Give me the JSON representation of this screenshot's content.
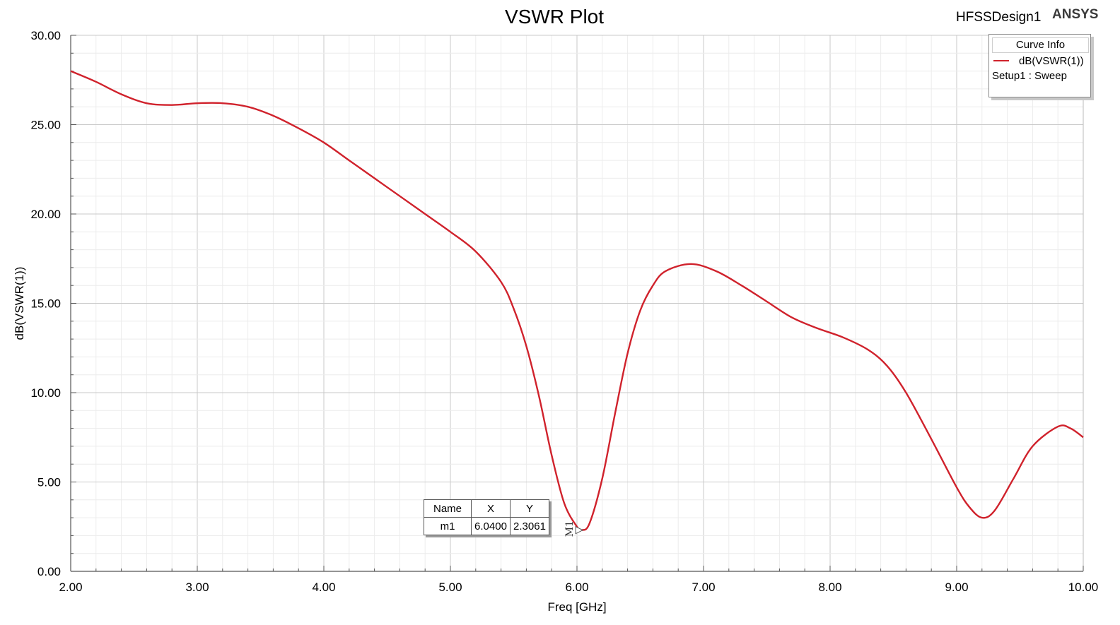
{
  "header": {
    "title": "VSWR Plot",
    "design_name": "HFSSDesign1",
    "brand": "ANSYS"
  },
  "legend": {
    "heading": "Curve Info",
    "series_name": "dB(VSWR(1))",
    "source": "Setup1 : Sweep",
    "color": "#d0222c"
  },
  "marker_table": {
    "headers": [
      "Name",
      "X",
      "Y"
    ],
    "rows": [
      [
        "m1",
        "6.0400",
        "2.3061"
      ]
    ],
    "marker_label": "M1"
  },
  "chart_data": {
    "type": "line",
    "title": "VSWR Plot",
    "xlabel": "Freq [GHz]",
    "ylabel": "dB(VSWR(1))",
    "xlim": [
      2.0,
      10.0
    ],
    "ylim": [
      0.0,
      30.0
    ],
    "x_ticks": [
      "2.00",
      "3.00",
      "4.00",
      "5.00",
      "6.00",
      "7.00",
      "8.00",
      "9.00",
      "10.00"
    ],
    "y_ticks": [
      "0.00",
      "5.00",
      "10.00",
      "15.00",
      "20.00",
      "25.00",
      "30.00"
    ],
    "grid": true,
    "legend_position": "top-right",
    "series": [
      {
        "name": "dB(VSWR(1))",
        "color": "#d0222c",
        "x": [
          2.0,
          2.2,
          2.4,
          2.6,
          2.8,
          3.0,
          3.2,
          3.4,
          3.6,
          3.8,
          4.0,
          4.2,
          4.4,
          4.6,
          4.8,
          5.0,
          5.2,
          5.4,
          5.5,
          5.6,
          5.7,
          5.8,
          5.9,
          6.0,
          6.04,
          6.1,
          6.2,
          6.3,
          6.4,
          6.5,
          6.6,
          6.7,
          6.9,
          7.1,
          7.3,
          7.5,
          7.7,
          7.9,
          8.1,
          8.3,
          8.45,
          8.6,
          8.8,
          9.0,
          9.1,
          9.2,
          9.3,
          9.45,
          9.6,
          9.8,
          9.9,
          10.0
        ],
        "y": [
          28.0,
          27.4,
          26.7,
          26.2,
          26.1,
          26.2,
          26.2,
          26.0,
          25.5,
          24.8,
          24.0,
          23.0,
          22.0,
          21.0,
          20.0,
          19.0,
          17.9,
          16.2,
          14.7,
          12.6,
          9.8,
          6.5,
          3.8,
          2.5,
          2.31,
          2.7,
          5.2,
          8.8,
          12.2,
          14.6,
          16.0,
          16.8,
          17.2,
          16.8,
          16.0,
          15.1,
          14.2,
          13.6,
          13.1,
          12.4,
          11.5,
          10.0,
          7.4,
          4.7,
          3.6,
          3.0,
          3.4,
          5.2,
          7.0,
          8.1,
          8.0,
          7.5
        ]
      }
    ],
    "markers": [
      {
        "name": "m1",
        "x": 6.04,
        "y": 2.3061
      }
    ]
  }
}
